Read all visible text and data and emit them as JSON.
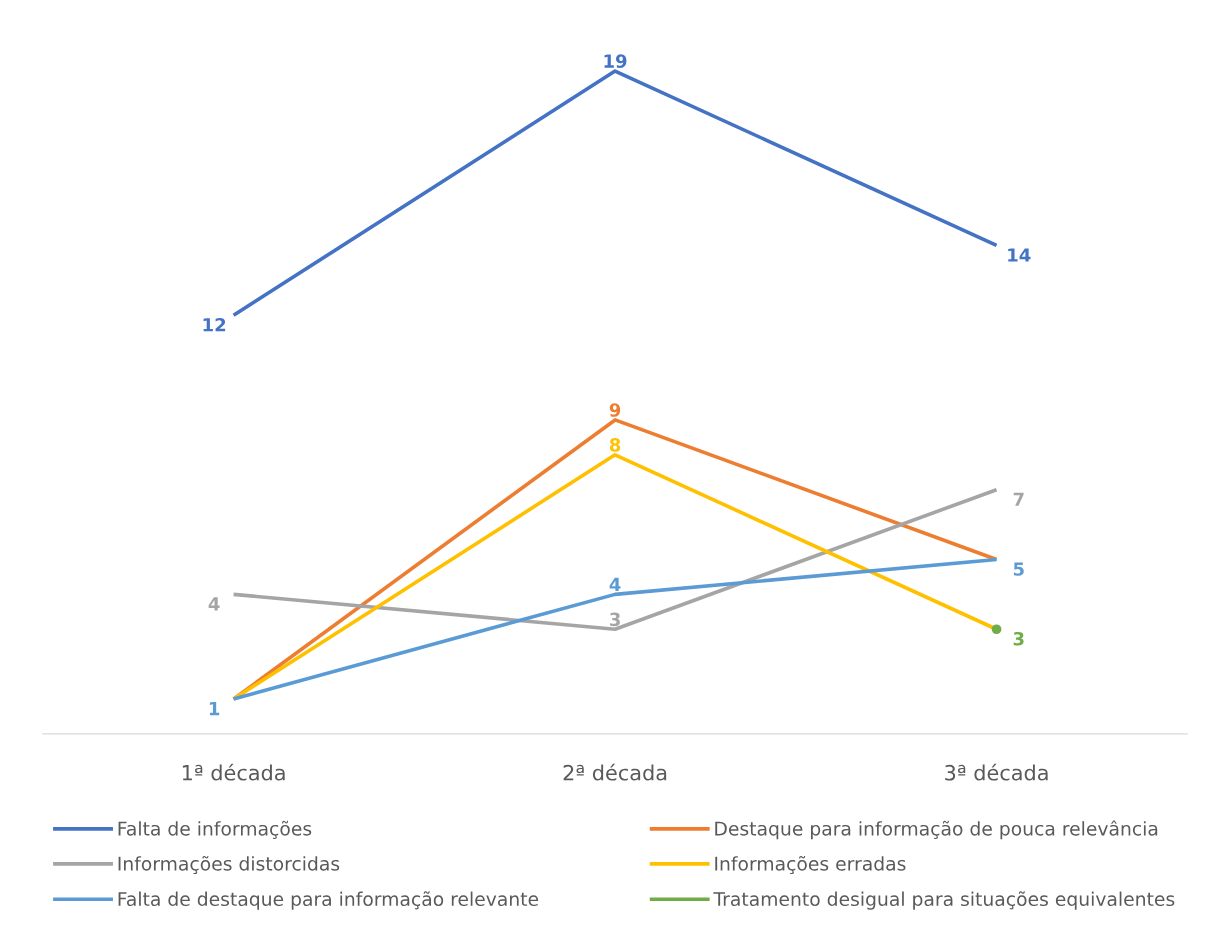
{
  "chart_data": {
    "type": "line",
    "categories": [
      "1ª década",
      "2ª década",
      "3ª década"
    ],
    "series": [
      {
        "name": "Falta de informações",
        "color": "#4472c4",
        "values": [
          12,
          19,
          14
        ],
        "value_labels": [
          "12",
          "19",
          "14"
        ]
      },
      {
        "name": "Destaque para informação de pouca relevância",
        "color": "#ed7d31",
        "values": [
          1,
          9,
          5
        ],
        "value_labels": [
          null,
          "9",
          null
        ]
      },
      {
        "name": "Informações distorcidas",
        "color": "#a5a5a5",
        "values": [
          4,
          3,
          7
        ],
        "value_labels": [
          "4",
          "3",
          "7"
        ]
      },
      {
        "name": "Informações erradas",
        "color": "#ffc000",
        "values": [
          1,
          8,
          3
        ],
        "value_labels": [
          null,
          "8",
          null
        ]
      },
      {
        "name": "Falta de destaque para informação relevante",
        "color": "#5b9bd5",
        "values": [
          1,
          4,
          5
        ],
        "value_labels": [
          "1",
          "4",
          "5"
        ]
      },
      {
        "name": "Tratamento desigual para situações equivalentes",
        "color": "#70ad47",
        "values": [
          null,
          null,
          3
        ],
        "marker": "circle",
        "value_labels": [
          null,
          null,
          "3"
        ]
      }
    ],
    "legend": "bottom",
    "grid": false
  }
}
